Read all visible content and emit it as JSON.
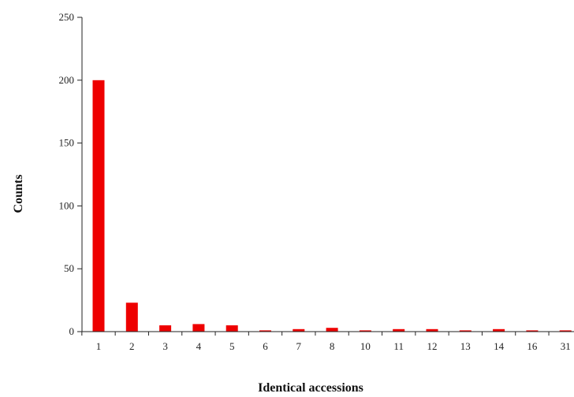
{
  "chart_data": {
    "type": "bar",
    "xlabel": "Identical accessions",
    "ylabel": "Counts",
    "categories": [
      "1",
      "2",
      "3",
      "4",
      "5",
      "6",
      "7",
      "8",
      "10",
      "11",
      "12",
      "13",
      "14",
      "16",
      "31"
    ],
    "values": [
      200,
      23,
      5,
      6,
      5,
      1,
      2,
      3,
      1,
      2,
      2,
      1,
      2,
      1,
      1
    ],
    "ylim": [
      0,
      250
    ],
    "yticks": [
      0,
      50,
      100,
      150,
      200,
      250
    ],
    "grid": false,
    "legend": "none",
    "bar_color": "#ee0000"
  }
}
